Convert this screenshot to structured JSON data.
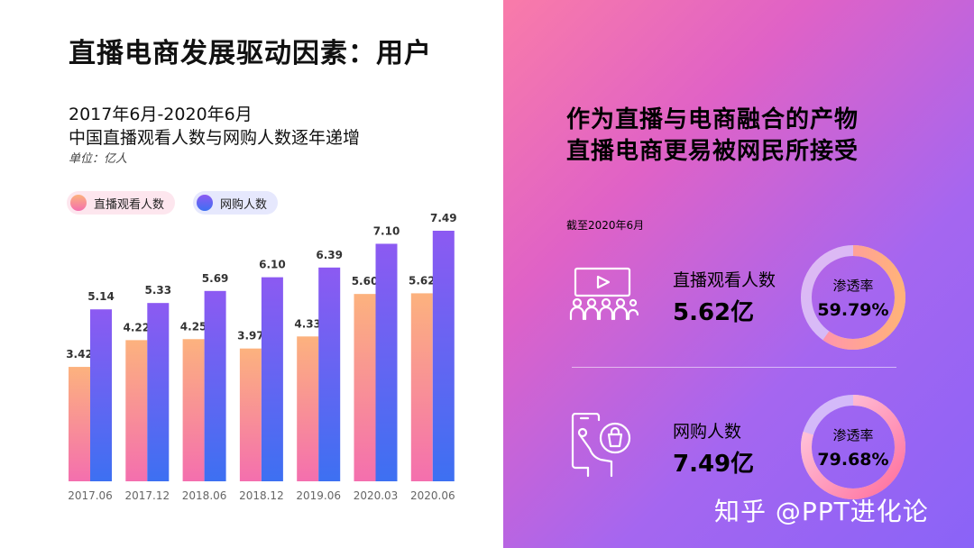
{
  "header": {
    "title": "直播电商发展驱动因素：用户",
    "subtitle_line1": "2017年6月-2020年6月",
    "subtitle_line2": "中国直播观看人数与网购人数逐年递增",
    "unit": "单位：亿人"
  },
  "chart_data": {
    "type": "bar",
    "categories": [
      "2017.06",
      "2017.12",
      "2018.06",
      "2018.12",
      "2019.06",
      "2020.03",
      "2020.06"
    ],
    "series": [
      {
        "name": "直播观看人数",
        "values": [
          3.42,
          4.22,
          4.25,
          3.97,
          4.33,
          5.6,
          5.62
        ],
        "labels": [
          "3.42",
          "4.22",
          "4.25",
          "3.97",
          "4.33",
          "5.60",
          "5.62"
        ],
        "color_top": "#fcb27e",
        "color_bottom": "#f46fae"
      },
      {
        "name": "网购人数",
        "values": [
          5.14,
          5.33,
          5.69,
          6.1,
          6.39,
          7.1,
          7.49
        ],
        "labels": [
          "5.14",
          "5.33",
          "5.69",
          "6.10",
          "6.39",
          "7.10",
          "7.49"
        ],
        "color_top": "#8c5af2",
        "color_bottom": "#3d70f2"
      }
    ],
    "ylim": [
      0,
      7.49
    ],
    "grid": false,
    "legend_position": "top-left"
  },
  "right_panel": {
    "headline_line1": "作为直播与电商融合的产物",
    "headline_line2": "直播电商更易被网民所接受",
    "as_of": "截至2020年6月",
    "metrics": [
      {
        "icon": "live-video-audience-icon",
        "label": "直播观看人数",
        "value": "5.62亿",
        "ring_label": "渗透率",
        "ring_value": "59.79%",
        "percent": 59.79
      },
      {
        "icon": "mobile-shopping-icon",
        "label": "网购人数",
        "value": "7.49亿",
        "ring_label": "渗透率",
        "ring_value": "79.68%",
        "percent": 79.68
      }
    ]
  },
  "watermark": "知乎 @PPT进化论"
}
